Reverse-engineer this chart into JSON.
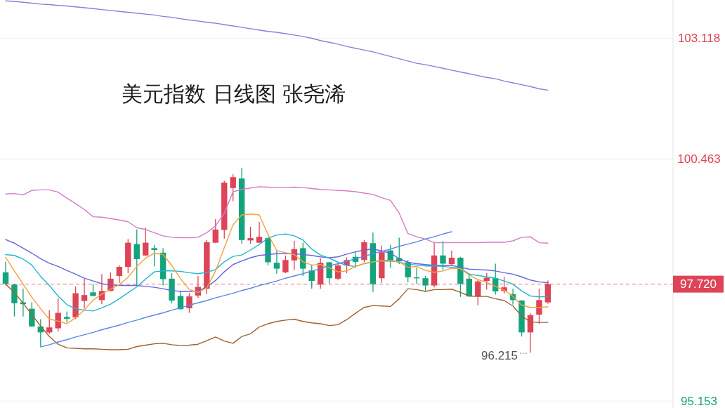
{
  "chart_data": {
    "type": "candlestick",
    "title": "美元指数 日线图 张尧浠",
    "categories": [
      null,
      null,
      null,
      null,
      null,
      null,
      null,
      null,
      null,
      null,
      null,
      null,
      null,
      null,
      null,
      null,
      null,
      null,
      null,
      null,
      null,
      null,
      null,
      null,
      null,
      null,
      null,
      null,
      null,
      null,
      null,
      null,
      null,
      null,
      null,
      null,
      null,
      null,
      null,
      null,
      null,
      null,
      null,
      null,
      null,
      null,
      null,
      null,
      null,
      null,
      null,
      null,
      null,
      null,
      null,
      null,
      null,
      null,
      null,
      null,
      null,
      null,
      null
    ],
    "ohlc": [
      [
        97.98,
        98.21,
        97.7,
        97.73
      ],
      [
        97.71,
        97.73,
        97.01,
        97.3
      ],
      [
        97.32,
        97.62,
        97.01,
        97.28
      ],
      [
        97.18,
        97.32,
        96.78,
        96.79
      ],
      [
        96.79,
        96.95,
        96.35,
        96.66
      ],
      [
        96.66,
        97.15,
        96.63,
        96.77
      ],
      [
        96.75,
        97.41,
        96.68,
        97.09
      ],
      [
        97.0,
        97.12,
        96.88,
        96.96
      ],
      [
        96.99,
        97.67,
        96.95,
        97.52
      ],
      [
        97.35,
        97.84,
        97.18,
        97.48
      ],
      [
        97.54,
        97.73,
        97.45,
        97.46
      ],
      [
        97.37,
        97.94,
        97.28,
        97.57
      ],
      [
        97.57,
        97.98,
        97.56,
        97.84
      ],
      [
        97.9,
        98.13,
        97.75,
        98.1
      ],
      [
        98.1,
        98.71,
        97.96,
        98.63
      ],
      [
        98.6,
        98.92,
        97.7,
        98.27
      ],
      [
        98.35,
        98.96,
        98.34,
        98.63
      ],
      [
        98.51,
        98.58,
        98.11,
        98.47
      ],
      [
        98.41,
        98.51,
        97.69,
        97.83
      ],
      [
        97.84,
        97.96,
        97.3,
        97.36
      ],
      [
        97.46,
        97.57,
        97.16,
        97.17
      ],
      [
        97.19,
        97.52,
        97.09,
        97.45
      ],
      [
        97.47,
        97.9,
        97.42,
        97.66
      ],
      [
        97.62,
        98.69,
        97.5,
        98.64
      ],
      [
        98.63,
        99.15,
        98.62,
        98.92
      ],
      [
        98.91,
        99.99,
        98.72,
        99.95
      ],
      [
        99.83,
        100.13,
        99.54,
        100.07
      ],
      [
        100.04,
        100.27,
        98.61,
        98.69
      ],
      [
        98.68,
        98.98,
        98.61,
        98.73
      ],
      [
        98.63,
        99.09,
        98.62,
        98.76
      ],
      [
        98.73,
        98.74,
        98.13,
        98.2
      ],
      [
        98.19,
        98.45,
        97.95,
        98.06
      ],
      [
        97.98,
        98.35,
        97.96,
        98.25
      ],
      [
        98.24,
        98.67,
        98.03,
        98.49
      ],
      [
        98.51,
        98.63,
        97.9,
        98.06
      ],
      [
        98.02,
        98.13,
        97.62,
        97.79
      ],
      [
        97.71,
        98.29,
        97.62,
        98.19
      ],
      [
        98.2,
        98.21,
        97.73,
        97.85
      ],
      [
        97.84,
        98.16,
        97.81,
        98.13
      ],
      [
        98.13,
        98.31,
        97.96,
        98.25
      ],
      [
        98.32,
        98.42,
        98.08,
        98.21
      ],
      [
        98.25,
        98.69,
        98.2,
        98.64
      ],
      [
        98.62,
        98.85,
        97.55,
        97.72
      ],
      [
        97.85,
        98.57,
        97.75,
        98.42
      ],
      [
        98.46,
        98.58,
        98.08,
        98.25
      ],
      [
        98.29,
        98.74,
        98.16,
        98.22
      ],
      [
        98.2,
        98.25,
        97.76,
        97.87
      ],
      [
        97.87,
        98.08,
        97.73,
        97.85
      ],
      [
        97.85,
        97.9,
        97.56,
        97.69
      ],
      [
        97.69,
        98.63,
        97.65,
        98.35
      ],
      [
        98.35,
        98.67,
        98.03,
        98.17
      ],
      [
        98.16,
        98.46,
        98.13,
        98.3
      ],
      [
        98.3,
        98.32,
        97.44,
        97.73
      ],
      [
        97.84,
        97.96,
        97.44,
        97.45
      ],
      [
        97.45,
        97.81,
        97.25,
        97.78
      ],
      [
        97.79,
        97.96,
        97.6,
        97.86
      ],
      [
        97.85,
        98.17,
        97.49,
        97.56
      ],
      [
        97.57,
        97.88,
        97.51,
        97.65
      ],
      [
        97.5,
        97.62,
        97.27,
        97.37
      ],
      [
        97.36,
        97.37,
        96.57,
        96.66
      ],
      [
        96.66,
        97.08,
        96.215,
        97.04
      ],
      [
        97.05,
        97.62,
        96.85,
        97.37
      ],
      [
        97.32,
        97.8,
        97.29,
        97.72
      ]
    ],
    "colors": [
      "#13a47c",
      "#13a47c",
      "#13a47c",
      "#13a47c",
      "#13a47c",
      "#de4457",
      "#de4457",
      "#13a47c",
      "#de4457",
      "#de4457",
      "#13a47c",
      "#de4457",
      "#de4457",
      "#de4457",
      "#de4457",
      "#13a47c",
      "#de4457",
      "#13a47c",
      "#13a47c",
      "#13a47c",
      "#13a47c",
      "#de4457",
      "#de4457",
      "#de4457",
      "#de4457",
      "#de4457",
      "#de4457",
      "#13a47c",
      "#de4457",
      "#de4457",
      "#13a47c",
      "#13a47c",
      "#de4457",
      "#de4457",
      "#13a47c",
      "#13a47c",
      "#de4457",
      "#13a47c",
      "#de4457",
      "#de4457",
      "#13a47c",
      "#de4457",
      "#13a47c",
      "#de4457",
      "#13a47c",
      "#13a47c",
      "#13a47c",
      "#13a47c",
      "#13a47c",
      "#de4457",
      "#13a47c",
      "#de4457",
      "#13a47c",
      "#13a47c",
      "#de4457",
      "#de4457",
      "#13a47c",
      "#de4457",
      "#13a47c",
      "#13a47c",
      "#de4457",
      "#de4457",
      "#de4457"
    ],
    "series": [
      {
        "type": "line",
        "color": "#8b7fd9",
        "values": [
          103.94,
          103.93,
          103.91,
          103.89,
          103.87,
          103.86,
          103.84,
          103.83,
          103.81,
          103.79,
          103.77,
          103.75,
          103.73,
          103.71,
          103.69,
          103.67,
          103.65,
          103.63,
          103.6,
          103.58,
          103.55,
          103.52,
          103.5,
          103.47,
          103.45,
          103.42,
          103.39,
          103.36,
          103.33,
          103.3,
          103.27,
          103.25,
          103.22,
          103.19,
          103.16,
          103.12,
          103.07,
          103.03,
          102.99,
          102.94,
          102.9,
          102.86,
          102.82,
          102.77,
          102.72,
          102.67,
          102.62,
          102.57,
          102.54,
          102.5,
          102.46,
          102.42,
          102.38,
          102.34,
          102.3,
          102.26,
          102.23,
          102.18,
          102.14,
          102.1,
          102.06,
          102.01,
          101.98
        ]
      },
      {
        "type": "line",
        "color": "#d47cc8",
        "values": [
          99.7,
          99.71,
          99.68,
          99.78,
          99.79,
          99.79,
          99.74,
          99.61,
          99.49,
          99.36,
          99.2,
          99.19,
          99.16,
          99.13,
          99.09,
          98.96,
          98.92,
          98.85,
          98.78,
          98.75,
          98.74,
          98.74,
          98.75,
          98.85,
          99.0,
          99.27,
          99.75,
          99.8,
          99.83,
          99.86,
          99.85,
          99.84,
          99.84,
          99.85,
          99.84,
          99.82,
          99.8,
          99.79,
          99.78,
          99.77,
          99.75,
          99.72,
          99.69,
          99.62,
          99.56,
          99.28,
          98.83,
          98.76,
          98.71,
          98.63,
          98.63,
          98.63,
          98.63,
          98.63,
          98.63,
          98.64,
          98.64,
          98.64,
          98.67,
          98.75,
          98.76,
          98.63,
          98.62
        ]
      },
      {
        "type": "line",
        "color": "#a0612f",
        "values": [
          97.72,
          97.54,
          97.3,
          97.05,
          96.8,
          96.57,
          96.4,
          96.32,
          96.31,
          96.3,
          96.3,
          96.29,
          96.28,
          96.28,
          96.29,
          96.35,
          96.38,
          96.41,
          96.42,
          96.39,
          96.37,
          96.38,
          96.4,
          96.48,
          96.56,
          96.47,
          96.42,
          96.57,
          96.63,
          96.78,
          96.85,
          96.9,
          96.93,
          96.95,
          96.9,
          96.87,
          96.85,
          96.81,
          96.83,
          96.94,
          97.08,
          97.21,
          97.25,
          97.24,
          97.23,
          97.4,
          97.62,
          97.6,
          97.56,
          97.6,
          97.6,
          97.61,
          97.54,
          97.46,
          97.45,
          97.45,
          97.4,
          97.36,
          97.24,
          97.02,
          96.89,
          96.88,
          96.88
        ]
      },
      {
        "type": "line",
        "color": "#6466dc",
        "values": [
          98.7,
          98.62,
          98.51,
          98.4,
          98.28,
          98.18,
          98.11,
          98.02,
          97.94,
          97.85,
          97.79,
          97.73,
          97.7,
          97.69,
          97.69,
          97.69,
          97.67,
          97.65,
          97.62,
          97.58,
          97.56,
          97.56,
          97.57,
          97.66,
          97.8,
          97.99,
          98.15,
          98.23,
          98.3,
          98.35,
          98.37,
          98.39,
          98.39,
          98.39,
          98.37,
          98.35,
          98.32,
          98.3,
          98.32,
          98.38,
          98.43,
          98.47,
          98.49,
          98.45,
          98.4,
          98.28,
          98.2,
          98.17,
          98.15,
          98.13,
          98.13,
          98.13,
          98.09,
          98.05,
          98.04,
          98.03,
          98.01,
          97.97,
          97.94,
          97.88,
          97.81,
          97.77,
          97.75
        ]
      },
      {
        "type": "line",
        "color": "#22b5cf",
        "values": [
          98.37,
          98.35,
          98.27,
          98.14,
          97.89,
          97.69,
          97.46,
          97.27,
          97.18,
          97.15,
          97.13,
          97.2,
          97.28,
          97.4,
          97.53,
          97.66,
          97.83,
          97.99,
          98.01,
          98.01,
          98.0,
          97.97,
          97.95,
          97.98,
          98.04,
          98.21,
          98.33,
          98.36,
          98.47,
          98.59,
          98.73,
          98.8,
          98.82,
          98.78,
          98.69,
          98.49,
          98.36,
          98.29,
          98.2,
          98.13,
          98.11,
          98.17,
          98.21,
          98.24,
          98.25,
          98.2,
          98.16,
          98.14,
          98.12,
          98.12,
          98.11,
          98.09,
          98.07,
          97.94,
          97.91,
          97.88,
          97.85,
          97.79,
          97.72,
          97.57,
          97.46,
          97.44,
          97.45
        ]
      },
      {
        "type": "line",
        "color": "#f5a03c",
        "values": [
          98.31,
          98.01,
          97.72,
          97.43,
          97.18,
          96.95,
          96.91,
          96.85,
          96.98,
          97.15,
          97.37,
          97.5,
          97.61,
          97.71,
          97.87,
          98.11,
          98.29,
          98.4,
          98.37,
          98.13,
          97.84,
          97.6,
          97.54,
          97.64,
          98.01,
          98.52,
          99.02,
          99.24,
          99.26,
          99.24,
          98.81,
          98.46,
          98.41,
          98.37,
          98.21,
          98.14,
          98.15,
          98.08,
          97.99,
          98.01,
          98.11,
          98.17,
          98.21,
          98.23,
          98.22,
          98.21,
          98.09,
          98.11,
          98.02,
          97.98,
          98.01,
          98.07,
          98.06,
          97.92,
          97.82,
          97.76,
          97.67,
          97.59,
          97.45,
          97.26,
          97.21,
          97.21,
          97.22
        ]
      },
      {
        "type": "line",
        "color": "#5a87e6",
        "values": [
          null,
          null,
          null,
          null,
          96.34,
          96.39,
          96.45,
          96.5,
          96.56,
          96.61,
          96.66,
          96.72,
          96.77,
          96.82,
          96.88,
          96.93,
          96.99,
          97.04,
          97.09,
          97.15,
          97.2,
          97.26,
          97.31,
          97.36,
          97.42,
          97.47,
          97.52,
          97.58,
          97.63,
          97.69,
          97.74,
          97.79,
          97.85,
          97.9,
          97.95,
          98.01,
          98.06,
          98.12,
          98.17,
          98.22,
          98.28,
          98.33,
          98.39,
          98.44,
          98.49,
          98.55,
          98.6,
          98.65,
          98.71,
          98.76,
          98.82,
          98.87,
          null,
          null,
          null,
          null,
          null,
          null,
          null,
          null,
          null,
          null,
          null
        ]
      }
    ],
    "ylim": [
      95.0,
      103.96
    ],
    "yticks": [
      95.153,
      100.463,
      103.118
    ],
    "tick_labels": "y",
    "grid": "y",
    "ref_lines": [
      {
        "axis": "y",
        "value": 97.72,
        "label": "97.720",
        "color": "#de4457",
        "line_style": "dashed"
      }
    ],
    "annotations": [
      "96.215"
    ]
  }
}
